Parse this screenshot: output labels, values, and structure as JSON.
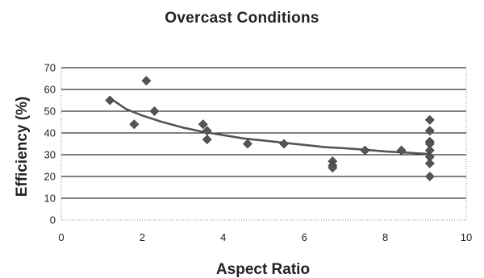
{
  "chart_data": {
    "type": "scatter",
    "title": "Overcast Conditions",
    "xlabel": "Aspect Ratio",
    "ylabel": "Efficiency (%)",
    "xlim": [
      0,
      10
    ],
    "ylim": [
      0,
      70
    ],
    "x_ticks": [
      "0",
      "2",
      "4",
      "6",
      "8",
      "10"
    ],
    "y_ticks": [
      "0",
      "10",
      "20",
      "30",
      "40",
      "50",
      "60",
      "70"
    ],
    "grid": "horizontal",
    "legend": "none",
    "marker_color": "#555555",
    "trend_color": "#555555",
    "series": [
      {
        "points": [
          {
            "x": 1.2,
            "y": 55
          },
          {
            "x": 1.8,
            "y": 44
          },
          {
            "x": 2.1,
            "y": 64
          },
          {
            "x": 2.3,
            "y": 50
          },
          {
            "x": 3.5,
            "y": 44
          },
          {
            "x": 3.6,
            "y": 41
          },
          {
            "x": 3.6,
            "y": 37
          },
          {
            "x": 4.6,
            "y": 35
          },
          {
            "x": 5.5,
            "y": 35
          },
          {
            "x": 6.7,
            "y": 27
          },
          {
            "x": 6.7,
            "y": 25
          },
          {
            "x": 6.7,
            "y": 24
          },
          {
            "x": 7.5,
            "y": 32
          },
          {
            "x": 8.4,
            "y": 32
          },
          {
            "x": 9.1,
            "y": 46
          },
          {
            "x": 9.1,
            "y": 41
          },
          {
            "x": 9.1,
            "y": 36
          },
          {
            "x": 9.1,
            "y": 35
          },
          {
            "x": 9.1,
            "y": 32
          },
          {
            "x": 9.1,
            "y": 29
          },
          {
            "x": 9.1,
            "y": 26
          },
          {
            "x": 9.1,
            "y": 20
          }
        ]
      }
    ],
    "trendline": {
      "type": "power",
      "points": [
        {
          "x": 1.2,
          "y": 56
        },
        {
          "x": 1.6,
          "y": 51
        },
        {
          "x": 2.0,
          "y": 48
        },
        {
          "x": 2.5,
          "y": 45
        },
        {
          "x": 3.0,
          "y": 42.5
        },
        {
          "x": 3.5,
          "y": 40.5
        },
        {
          "x": 4.0,
          "y": 39
        },
        {
          "x": 4.5,
          "y": 37.5
        },
        {
          "x": 5.0,
          "y": 36.5
        },
        {
          "x": 5.5,
          "y": 35.5
        },
        {
          "x": 6.0,
          "y": 34.5
        },
        {
          "x": 6.5,
          "y": 33.5
        },
        {
          "x": 7.0,
          "y": 33
        },
        {
          "x": 7.5,
          "y": 32.3
        },
        {
          "x": 8.0,
          "y": 31.5
        },
        {
          "x": 8.5,
          "y": 31
        },
        {
          "x": 9.1,
          "y": 30.3
        }
      ]
    }
  }
}
